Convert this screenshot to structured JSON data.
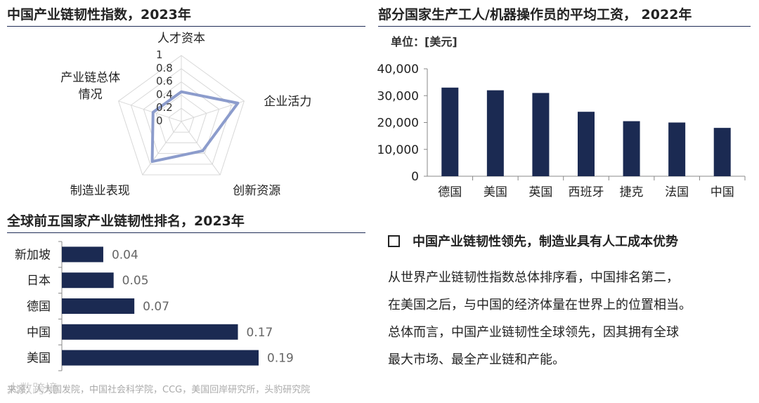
{
  "radar": {
    "title": "中国产业链韧性指数，2023年",
    "chart_data": {
      "type": "radar",
      "axes": [
        "人才资本",
        "企业活力",
        "创新资源",
        "制造业表现",
        "产业链总体情况"
      ],
      "axis_label_lines": [
        [
          "人才资本"
        ],
        [
          "企业活力"
        ],
        [
          "创新资源"
        ],
        [
          "制造业表现"
        ],
        [
          "产业链总体",
          "情况"
        ]
      ],
      "values": [
        0.45,
        0.9,
        0.55,
        0.75,
        0.45
      ],
      "ticks": [
        "1",
        "0.8",
        "0.6",
        "0.4",
        "0.2",
        "0"
      ],
      "range": [
        0,
        1
      ],
      "series_color": "#8c9ccc",
      "grid_color": "#d8d8d8"
    }
  },
  "wages": {
    "title": "部分国家生产工人/机器操作员的平均工资， 2022年",
    "unit": "单位：[美元]",
    "chart_data": {
      "type": "bar",
      "categories": [
        "德国",
        "美国",
        "英国",
        "西班牙",
        "捷克",
        "法国",
        "中国"
      ],
      "values": [
        33000,
        32000,
        31000,
        24000,
        20500,
        20000,
        18000
      ],
      "yticks": [
        "0",
        "10,000",
        "20,000",
        "30,000",
        "40,000"
      ],
      "ylim": [
        0,
        40000
      ],
      "bar_color": "#1b2a52"
    }
  },
  "ranking": {
    "title": "全球前五国家产业链韧性排名，2023年",
    "chart_data": {
      "type": "bar",
      "orientation": "horizontal",
      "categories": [
        "新加坡",
        "日本",
        "德国",
        "中国",
        "美国"
      ],
      "values": [
        0.04,
        0.05,
        0.07,
        0.17,
        0.19
      ],
      "labels": [
        "0.04",
        "0.05",
        "0.07",
        "0.17",
        "0.19"
      ],
      "xlim": [
        0,
        0.19
      ],
      "bar_color": "#1b2a52"
    }
  },
  "callout": {
    "heading": "中国产业链韧性领先，制造业具有人工成本优势",
    "lines": [
      "从世界产业链韧性指数总体排序看，中国排名第二，",
      "在美国之后，与中国的经济体量在世界上的位置相当。",
      "总体而言，中国产业链韧性全球领先，因其拥有全球",
      "最大市场、最全产业链和产能。"
    ]
  },
  "source": "来源：人大国发院，中国社会科学院，CCG，美国回岸研究所，头豹研究院",
  "watermark": "大数跨境"
}
